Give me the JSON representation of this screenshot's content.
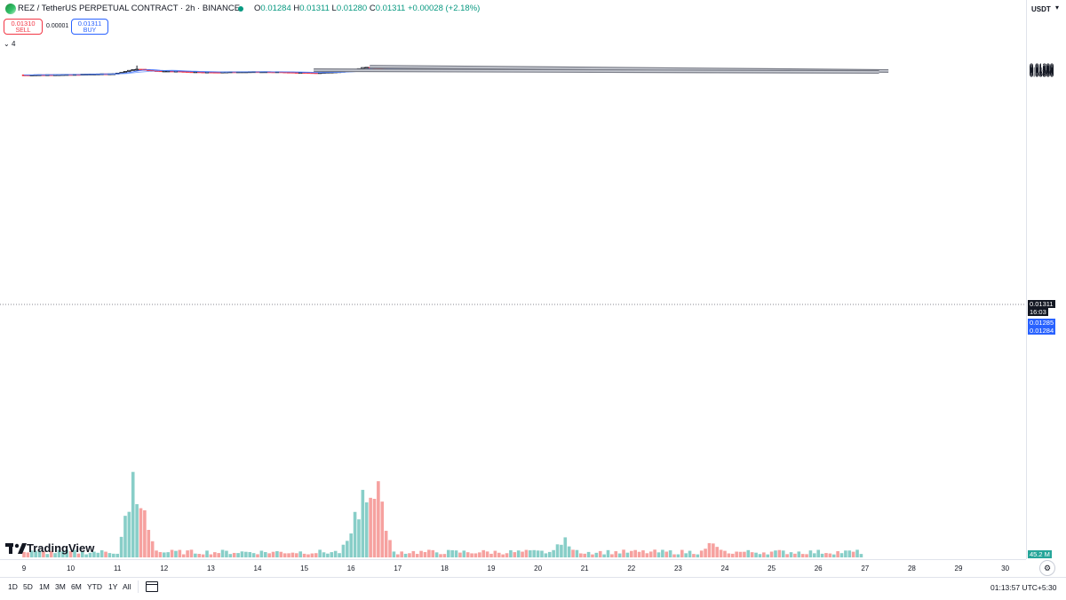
{
  "header": {
    "symbol_line": "REZ / TetherUS PERPETUAL CONTRACT · 2h · BINANCE",
    "ohlc": {
      "o_label": "O",
      "o": "0.01284",
      "h_label": "H",
      "h": "0.01311",
      "l_label": "L",
      "l": "0.01280",
      "c_label": "C",
      "c": "0.01311",
      "change": "+0.00028 (+2.18%)"
    }
  },
  "trade": {
    "sell_price": "0.01310",
    "sell_label": "SELL",
    "spread": "0.00001",
    "buy_price": "0.01311",
    "buy_label": "BUY"
  },
  "indicators_toggle": "4",
  "price_axis": {
    "currency": "USDT",
    "ticks": [
      "0.01800",
      "0.01750",
      "0.01700",
      "0.01650",
      "0.01600",
      "0.01550",
      "0.01500",
      "0.01450",
      "0.01400",
      "0.01350",
      "0.01300",
      "0.01250",
      "0.01200",
      "0.01150",
      "0.01100",
      "0.01050",
      "0.01000",
      "0.00950",
      "0.00900",
      "0.00850"
    ],
    "last_price": "0.01311",
    "countdown": "16:03",
    "ma1": "0.01285",
    "ma2": "0.01284",
    "volume": "45.2 M"
  },
  "time_axis": [
    "9",
    "10",
    "11",
    "12",
    "13",
    "14",
    "15",
    "16",
    "17",
    "18",
    "19",
    "20",
    "21",
    "22",
    "23",
    "24",
    "25",
    "26",
    "27",
    "28",
    "29",
    "30"
  ],
  "range_buttons": [
    "1D",
    "5D",
    "1M",
    "3M",
    "6M",
    "YTD",
    "1Y",
    "All"
  ],
  "clock": "01:13:57 UTC+5:30",
  "logo_text": "TradingView",
  "icons": [
    "symbol-logo-icon",
    "live-dot-icon",
    "chevron-down-icon",
    "calendar-range-icon",
    "settings-gear-icon",
    "tradingview-logo-icon"
  ],
  "colors": {
    "up": "#089981",
    "down": "#f23645",
    "ma": "#2962ff",
    "volume_up": "#26a69a",
    "volume_down": "#ef5350",
    "trendline": "#787b86",
    "last_price_bg": "#131722",
    "ma_label_bg": "#2962ff"
  },
  "chart_data": {
    "type": "candlestick",
    "interval": "2h",
    "x_range": [
      "9",
      "30"
    ],
    "ylim": [
      0.0082,
      0.0188
    ],
    "grid": false,
    "anchors_close": [
      [
        9,
        0.00845
      ],
      [
        10,
        0.0088
      ],
      [
        10.6,
        0.00945
      ],
      [
        10.9,
        0.0096
      ],
      [
        11.1,
        0.011
      ],
      [
        11.3,
        0.014
      ],
      [
        11.5,
        0.0144
      ],
      [
        11.7,
        0.013
      ],
      [
        11.9,
        0.0125
      ],
      [
        12.2,
        0.0124
      ],
      [
        12.5,
        0.0118
      ],
      [
        13,
        0.0113
      ],
      [
        13.5,
        0.0116
      ],
      [
        14,
        0.0117
      ],
      [
        14.4,
        0.0116
      ],
      [
        14.8,
        0.011
      ],
      [
        15.3,
        0.0107
      ],
      [
        15.8,
        0.012
      ],
      [
        16.0,
        0.0133
      ],
      [
        16.3,
        0.0165
      ],
      [
        16.5,
        0.0157
      ],
      [
        16.8,
        0.0147
      ],
      [
        17.2,
        0.0143
      ],
      [
        17.6,
        0.0138
      ],
      [
        18.0,
        0.0136
      ],
      [
        18.3,
        0.0143
      ],
      [
        18.7,
        0.0138
      ],
      [
        19.1,
        0.013
      ],
      [
        19.5,
        0.0128
      ],
      [
        19.9,
        0.0129
      ],
      [
        20.4,
        0.0137
      ],
      [
        20.6,
        0.0149
      ],
      [
        21.0,
        0.014
      ],
      [
        21.5,
        0.0141
      ],
      [
        22.0,
        0.0138
      ],
      [
        22.4,
        0.013
      ],
      [
        22.9,
        0.0136
      ],
      [
        23.3,
        0.014
      ],
      [
        23.7,
        0.0138
      ],
      [
        24.0,
        0.0129
      ],
      [
        24.4,
        0.0123
      ],
      [
        24.8,
        0.0127
      ],
      [
        25.2,
        0.0125
      ],
      [
        25.5,
        0.0124
      ],
      [
        25.9,
        0.0128
      ],
      [
        26.3,
        0.01285
      ],
      [
        26.7,
        0.0129
      ],
      [
        26.95,
        0.01311
      ]
    ],
    "spikes": [
      [
        11.4,
        0.01815
      ],
      [
        16.5,
        0.0174
      ],
      [
        20.55,
        0.0152
      ],
      [
        24.5,
        0.0118
      ]
    ],
    "volume_peaks": [
      [
        11.35,
        1.0
      ],
      [
        16.55,
        1.0
      ],
      [
        16.3,
        0.85
      ],
      [
        11.55,
        0.55
      ],
      [
        16.1,
        0.55
      ],
      [
        20.55,
        0.25
      ],
      [
        23.7,
        0.18
      ]
    ],
    "trendlines": [
      {
        "name": "upper",
        "from": [
          16.4,
          0.017
        ],
        "to": [
          27.5,
          0.0125
        ]
      },
      {
        "name": "lower",
        "from": [
          15.2,
          0.01335
        ],
        "to": [
          27.3,
          0.0115
        ]
      }
    ]
  }
}
